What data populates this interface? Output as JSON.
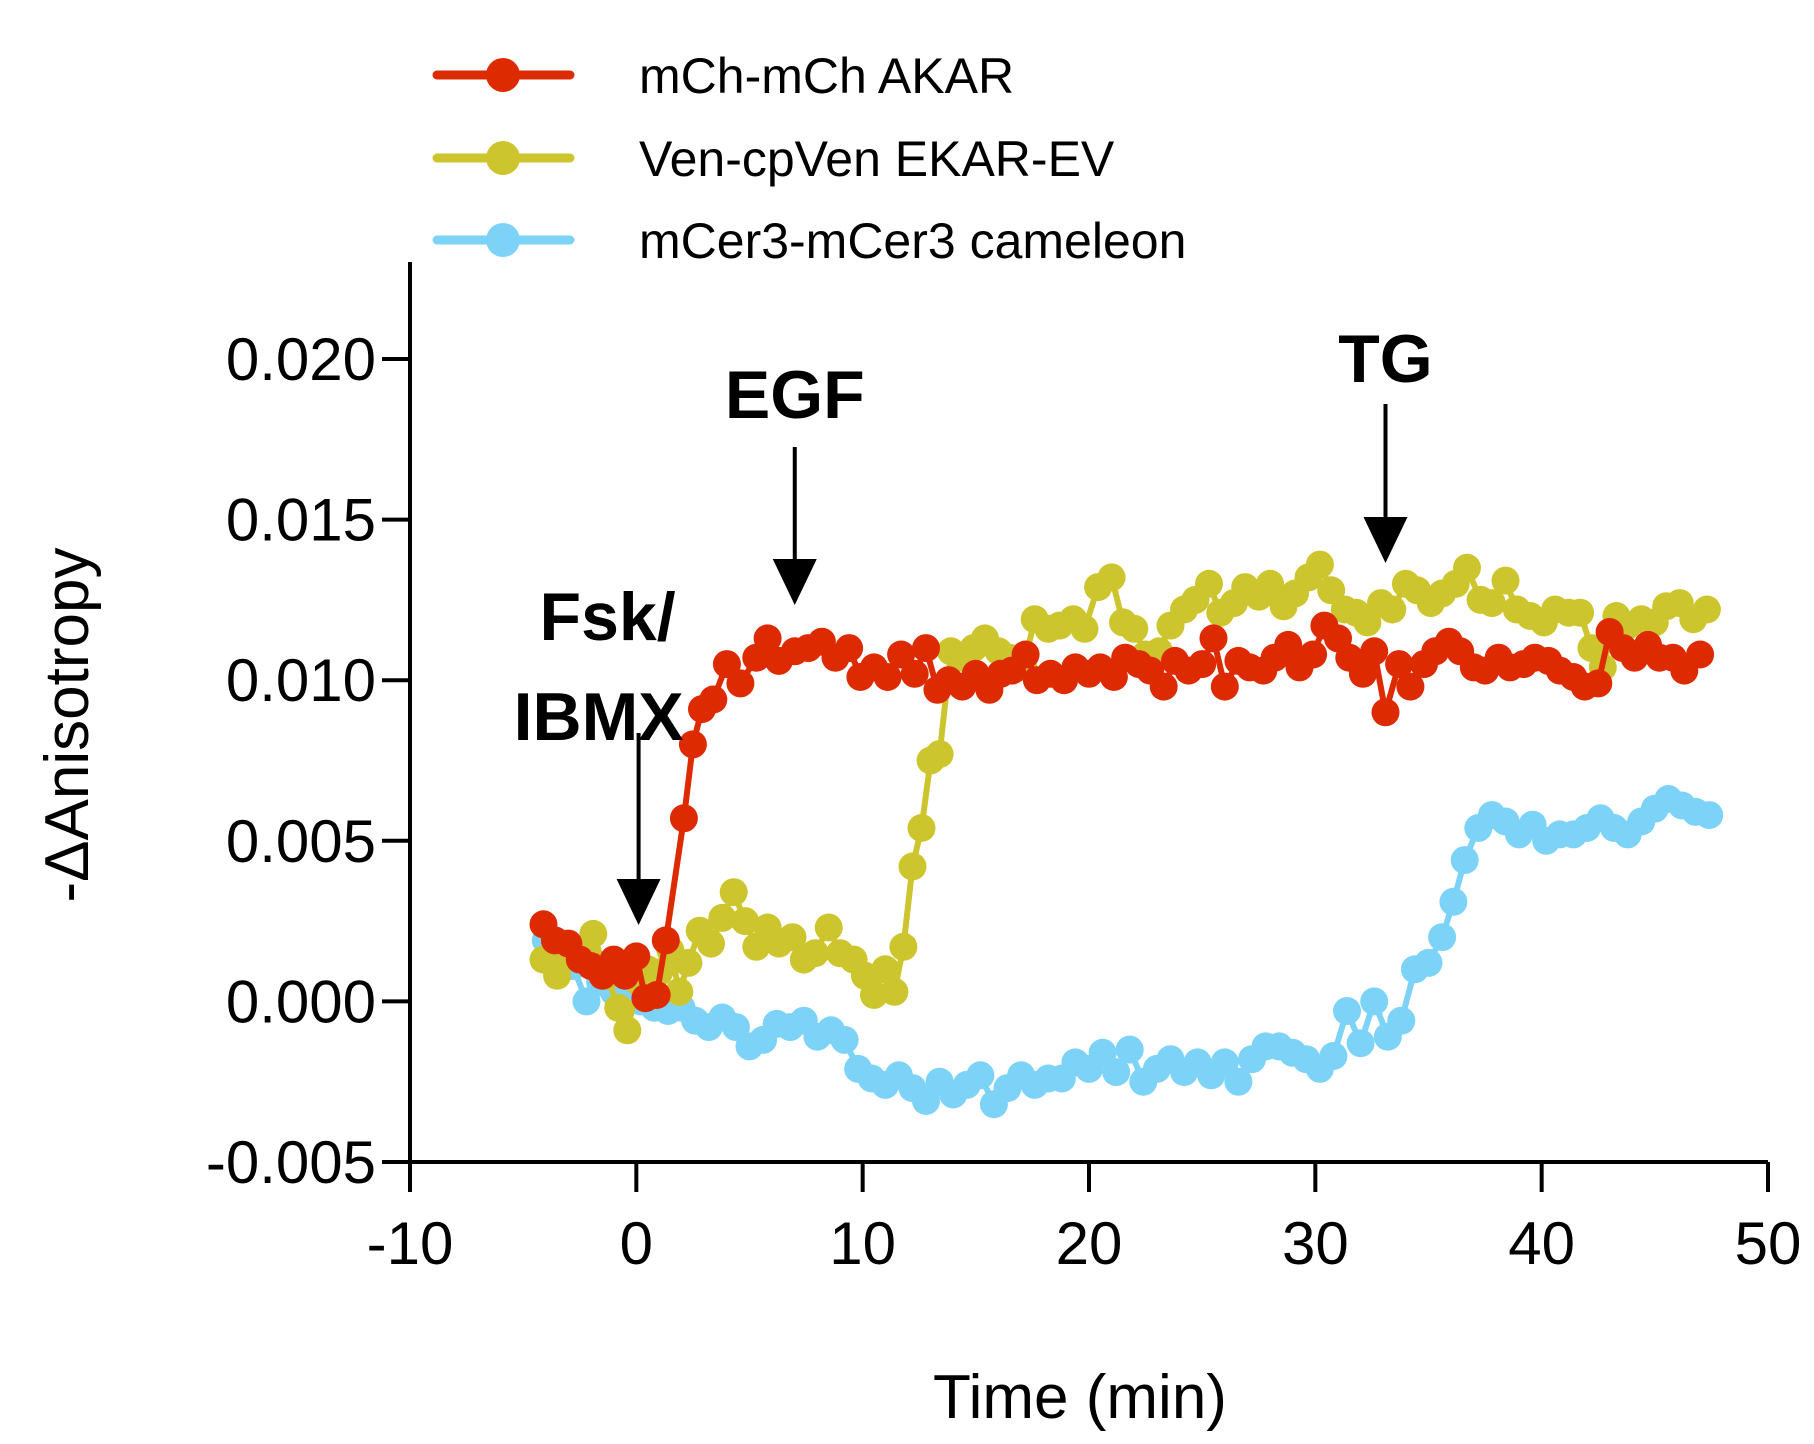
{
  "chart_data": {
    "type": "line",
    "title": "",
    "xlabel": "Time (min)",
    "ylabel": "-ΔAnisotropy",
    "xlim": [
      -10,
      50
    ],
    "ylim": [
      -0.005,
      0.022
    ],
    "x_ticks": [
      -10,
      0,
      10,
      20,
      30,
      40,
      50
    ],
    "x_tick_labels": [
      "-10",
      "0",
      "10",
      "20",
      "30",
      "40",
      "50"
    ],
    "y_ticks": [
      -0.005,
      0.0,
      0.005,
      0.01,
      0.015,
      0.02
    ],
    "y_tick_labels": [
      "-0.005",
      "0.000",
      "0.005",
      "0.010",
      "0.015",
      "0.020"
    ],
    "grid": false,
    "legend_position": "top",
    "series": [
      {
        "name": "mCh-mCh AKAR",
        "color": "#dd2a00",
        "points": [
          [
            -4.1,
            0.0024
          ],
          [
            -3.6,
            0.0019
          ],
          [
            -3.0,
            0.0018
          ],
          [
            -2.5,
            0.0013
          ],
          [
            -2.0,
            0.0011
          ],
          [
            -1.5,
            0.0008
          ],
          [
            -1.0,
            0.0013
          ],
          [
            -0.5,
            0.0008
          ],
          [
            0.0,
            0.0014
          ],
          [
            0.4,
            0.0001
          ],
          [
            0.9,
            0.0002
          ],
          [
            1.3,
            0.0019
          ],
          [
            2.1,
            0.0057
          ],
          [
            2.5,
            0.008
          ],
          [
            2.9,
            0.0091
          ],
          [
            3.4,
            0.0094
          ],
          [
            4.0,
            0.0105
          ],
          [
            4.6,
            0.0099
          ],
          [
            5.3,
            0.0107
          ],
          [
            5.8,
            0.0113
          ],
          [
            6.3,
            0.0106
          ],
          [
            7.0,
            0.0109
          ],
          [
            7.6,
            0.011
          ],
          [
            8.2,
            0.0112
          ],
          [
            8.8,
            0.0107
          ],
          [
            9.4,
            0.011
          ],
          [
            9.9,
            0.0101
          ],
          [
            10.5,
            0.0104
          ],
          [
            11.1,
            0.0101
          ],
          [
            11.7,
            0.0108
          ],
          [
            12.3,
            0.0102
          ],
          [
            12.8,
            0.011
          ],
          [
            13.3,
            0.0097
          ],
          [
            13.8,
            0.01
          ],
          [
            14.4,
            0.0098
          ],
          [
            15.0,
            0.0102
          ],
          [
            15.6,
            0.0097
          ],
          [
            16.1,
            0.0102
          ],
          [
            16.6,
            0.0103
          ],
          [
            17.2,
            0.0108
          ],
          [
            17.7,
            0.01
          ],
          [
            18.3,
            0.0102
          ],
          [
            18.9,
            0.01
          ],
          [
            19.4,
            0.0104
          ],
          [
            20.0,
            0.0102
          ],
          [
            20.5,
            0.0104
          ],
          [
            21.1,
            0.0101
          ],
          [
            21.6,
            0.0107
          ],
          [
            22.2,
            0.0105
          ],
          [
            22.7,
            0.0103
          ],
          [
            23.3,
            0.0098
          ],
          [
            23.8,
            0.0106
          ],
          [
            24.4,
            0.0103
          ],
          [
            25.0,
            0.0105
          ],
          [
            25.5,
            0.0113
          ],
          [
            26.0,
            0.0098
          ],
          [
            26.6,
            0.0106
          ],
          [
            27.1,
            0.0104
          ],
          [
            27.7,
            0.0103
          ],
          [
            28.2,
            0.0107
          ],
          [
            28.8,
            0.0111
          ],
          [
            29.3,
            0.0104
          ],
          [
            29.9,
            0.0108
          ],
          [
            30.4,
            0.0117
          ],
          [
            31.0,
            0.0113
          ],
          [
            31.5,
            0.0107
          ],
          [
            32.1,
            0.0102
          ],
          [
            32.6,
            0.0109
          ],
          [
            33.1,
            0.009
          ],
          [
            33.7,
            0.0105
          ],
          [
            34.2,
            0.0098
          ],
          [
            34.8,
            0.0105
          ],
          [
            35.3,
            0.0109
          ],
          [
            35.9,
            0.0112
          ],
          [
            36.4,
            0.0109
          ],
          [
            37.0,
            0.0104
          ],
          [
            37.5,
            0.0103
          ],
          [
            38.1,
            0.0107
          ],
          [
            38.6,
            0.0104
          ],
          [
            39.2,
            0.0105
          ],
          [
            39.7,
            0.0107
          ],
          [
            40.3,
            0.0106
          ],
          [
            40.8,
            0.0103
          ],
          [
            41.4,
            0.0101
          ],
          [
            41.9,
            0.0098
          ],
          [
            42.5,
            0.0099
          ],
          [
            43.0,
            0.0115
          ],
          [
            43.6,
            0.011
          ],
          [
            44.1,
            0.0107
          ],
          [
            44.7,
            0.0111
          ],
          [
            45.2,
            0.0107
          ],
          [
            45.8,
            0.0107
          ],
          [
            46.3,
            0.0103
          ],
          [
            47.0,
            0.0108
          ]
        ]
      },
      {
        "name": "Ven-cpVen EKAR-EV",
        "color": "#cdc52d",
        "points": [
          [
            -4.1,
            0.0013
          ],
          [
            -3.5,
            0.0008
          ],
          [
            -3.0,
            0.0015
          ],
          [
            -2.4,
            0.0016
          ],
          [
            -1.9,
            0.0021
          ],
          [
            -1.3,
            0.0008
          ],
          [
            -0.8,
            -0.0002
          ],
          [
            -0.4,
            -0.0009
          ],
          [
            0.1,
            0.0006
          ],
          [
            0.5,
            0.001
          ],
          [
            1.0,
            0.0009
          ],
          [
            1.5,
            0.0016
          ],
          [
            1.9,
            0.0003
          ],
          [
            2.3,
            0.0012
          ],
          [
            2.8,
            0.0022
          ],
          [
            3.3,
            0.0018
          ],
          [
            3.8,
            0.0026
          ],
          [
            4.3,
            0.0034
          ],
          [
            4.8,
            0.0025
          ],
          [
            5.3,
            0.0017
          ],
          [
            5.8,
            0.0023
          ],
          [
            6.3,
            0.0018
          ],
          [
            6.9,
            0.002
          ],
          [
            7.4,
            0.0013
          ],
          [
            7.9,
            0.0015
          ],
          [
            8.5,
            0.0023
          ],
          [
            9.0,
            0.0015
          ],
          [
            9.6,
            0.0013
          ],
          [
            10.1,
            0.0008
          ],
          [
            10.5,
            0.0002
          ],
          [
            11.0,
            0.001
          ],
          [
            11.4,
            0.0003
          ],
          [
            11.8,
            0.0017
          ],
          [
            12.2,
            0.0042
          ],
          [
            12.6,
            0.0054
          ],
          [
            13.0,
            0.0075
          ],
          [
            13.4,
            0.0077
          ],
          [
            13.9,
            0.0109
          ],
          [
            14.4,
            0.0107
          ],
          [
            14.9,
            0.011
          ],
          [
            15.4,
            0.0113
          ],
          [
            16.0,
            0.0109
          ],
          [
            16.5,
            0.0107
          ],
          [
            17.1,
            0.0104
          ],
          [
            17.6,
            0.0119
          ],
          [
            18.2,
            0.0116
          ],
          [
            18.7,
            0.0117
          ],
          [
            19.3,
            0.0119
          ],
          [
            19.8,
            0.0116
          ],
          [
            20.4,
            0.0129
          ],
          [
            21.0,
            0.0132
          ],
          [
            21.5,
            0.0118
          ],
          [
            22.0,
            0.0116
          ],
          [
            22.5,
            0.0108
          ],
          [
            23.1,
            0.0109
          ],
          [
            23.6,
            0.0117
          ],
          [
            24.2,
            0.0122
          ],
          [
            24.7,
            0.0125
          ],
          [
            25.3,
            0.013
          ],
          [
            25.8,
            0.0121
          ],
          [
            26.4,
            0.0124
          ],
          [
            26.9,
            0.0129
          ],
          [
            27.5,
            0.0126
          ],
          [
            28.0,
            0.013
          ],
          [
            28.6,
            0.0123
          ],
          [
            29.1,
            0.0127
          ],
          [
            29.7,
            0.0132
          ],
          [
            30.2,
            0.0136
          ],
          [
            30.7,
            0.0128
          ],
          [
            31.3,
            0.0122
          ],
          [
            31.8,
            0.0121
          ],
          [
            32.3,
            0.0118
          ],
          [
            32.9,
            0.0124
          ],
          [
            33.4,
            0.0122
          ],
          [
            34.0,
            0.013
          ],
          [
            34.5,
            0.0128
          ],
          [
            35.1,
            0.0124
          ],
          [
            35.6,
            0.0127
          ],
          [
            36.2,
            0.013
          ],
          [
            36.7,
            0.0135
          ],
          [
            37.3,
            0.0125
          ],
          [
            37.8,
            0.0124
          ],
          [
            38.4,
            0.0131
          ],
          [
            38.9,
            0.0122
          ],
          [
            39.5,
            0.012
          ],
          [
            40.1,
            0.0118
          ],
          [
            40.6,
            0.0122
          ],
          [
            41.2,
            0.0121
          ],
          [
            41.7,
            0.0121
          ],
          [
            42.2,
            0.011
          ],
          [
            42.7,
            0.0104
          ],
          [
            43.3,
            0.012
          ],
          [
            43.8,
            0.0117
          ],
          [
            44.4,
            0.0119
          ],
          [
            45.0,
            0.0118
          ],
          [
            45.5,
            0.0123
          ],
          [
            46.1,
            0.0124
          ],
          [
            46.7,
            0.0119
          ],
          [
            47.3,
            0.0122
          ]
        ]
      },
      {
        "name": "mCer3-mCer3 cameleon",
        "color": "#7dd3f7",
        "points": [
          [
            -4.0,
            0.0019
          ],
          [
            -3.4,
            0.0015
          ],
          [
            -2.8,
            0.0011
          ],
          [
            -2.2,
            0.0
          ],
          [
            -1.6,
            0.0006
          ],
          [
            -1.0,
            0.0003
          ],
          [
            -0.4,
            0.0003
          ],
          [
            0.2,
            0.0
          ],
          [
            0.8,
            -0.0002
          ],
          [
            1.4,
            -0.0003
          ],
          [
            2.0,
            -0.0002
          ],
          [
            2.6,
            -0.0006
          ],
          [
            3.2,
            -0.0008
          ],
          [
            3.8,
            -0.0005
          ],
          [
            4.4,
            -0.0008
          ],
          [
            5.0,
            -0.0014
          ],
          [
            5.6,
            -0.0012
          ],
          [
            6.2,
            -0.0007
          ],
          [
            6.8,
            -0.0008
          ],
          [
            7.4,
            -0.0006
          ],
          [
            8.0,
            -0.0011
          ],
          [
            8.6,
            -0.0009
          ],
          [
            9.2,
            -0.0012
          ],
          [
            9.8,
            -0.0021
          ],
          [
            10.4,
            -0.0024
          ],
          [
            11.0,
            -0.0026
          ],
          [
            11.6,
            -0.0023
          ],
          [
            12.2,
            -0.0027
          ],
          [
            12.8,
            -0.0031
          ],
          [
            13.4,
            -0.0025
          ],
          [
            14.0,
            -0.0029
          ],
          [
            14.6,
            -0.0026
          ],
          [
            15.2,
            -0.0023
          ],
          [
            15.8,
            -0.0032
          ],
          [
            16.4,
            -0.0027
          ],
          [
            17.0,
            -0.0023
          ],
          [
            17.6,
            -0.0026
          ],
          [
            18.2,
            -0.0024
          ],
          [
            18.8,
            -0.0024
          ],
          [
            19.4,
            -0.0019
          ],
          [
            20.0,
            -0.0021
          ],
          [
            20.6,
            -0.0016
          ],
          [
            21.2,
            -0.0022
          ],
          [
            21.8,
            -0.0015
          ],
          [
            22.4,
            -0.0025
          ],
          [
            23.0,
            -0.0021
          ],
          [
            23.6,
            -0.0018
          ],
          [
            24.2,
            -0.0022
          ],
          [
            24.8,
            -0.0019
          ],
          [
            25.4,
            -0.0023
          ],
          [
            26.0,
            -0.0019
          ],
          [
            26.6,
            -0.0025
          ],
          [
            27.2,
            -0.0018
          ],
          [
            27.8,
            -0.0014
          ],
          [
            28.4,
            -0.0014
          ],
          [
            29.0,
            -0.0016
          ],
          [
            29.6,
            -0.0018
          ],
          [
            30.2,
            -0.0021
          ],
          [
            30.8,
            -0.0017
          ],
          [
            31.4,
            -0.0003
          ],
          [
            32.0,
            -0.0013
          ],
          [
            32.6,
            0.0
          ],
          [
            33.2,
            -0.0011
          ],
          [
            33.8,
            -0.0006
          ],
          [
            34.4,
            0.001
          ],
          [
            35.0,
            0.0012
          ],
          [
            35.6,
            0.002
          ],
          [
            36.1,
            0.0031
          ],
          [
            36.6,
            0.0044
          ],
          [
            37.2,
            0.0054
          ],
          [
            37.8,
            0.0058
          ],
          [
            38.4,
            0.0056
          ],
          [
            39.0,
            0.0052
          ],
          [
            39.6,
            0.0055
          ],
          [
            40.2,
            0.005
          ],
          [
            40.8,
            0.0052
          ],
          [
            41.4,
            0.0052
          ],
          [
            42.0,
            0.0054
          ],
          [
            42.6,
            0.0057
          ],
          [
            43.2,
            0.0054
          ],
          [
            43.8,
            0.0052
          ],
          [
            44.4,
            0.0056
          ],
          [
            45.0,
            0.006
          ],
          [
            45.6,
            0.0063
          ],
          [
            46.2,
            0.0061
          ],
          [
            46.8,
            0.0059
          ],
          [
            47.4,
            0.0058
          ]
        ]
      }
    ],
    "annotations": [
      {
        "id": "fsk-ibmx",
        "lines": [
          "Fsk/",
          "IBMX"
        ],
        "x": 0.1
      },
      {
        "id": "egf",
        "lines": [
          "EGF"
        ],
        "x": 7.0
      },
      {
        "id": "tg",
        "lines": [
          "TG"
        ],
        "x": 33.1
      }
    ]
  }
}
